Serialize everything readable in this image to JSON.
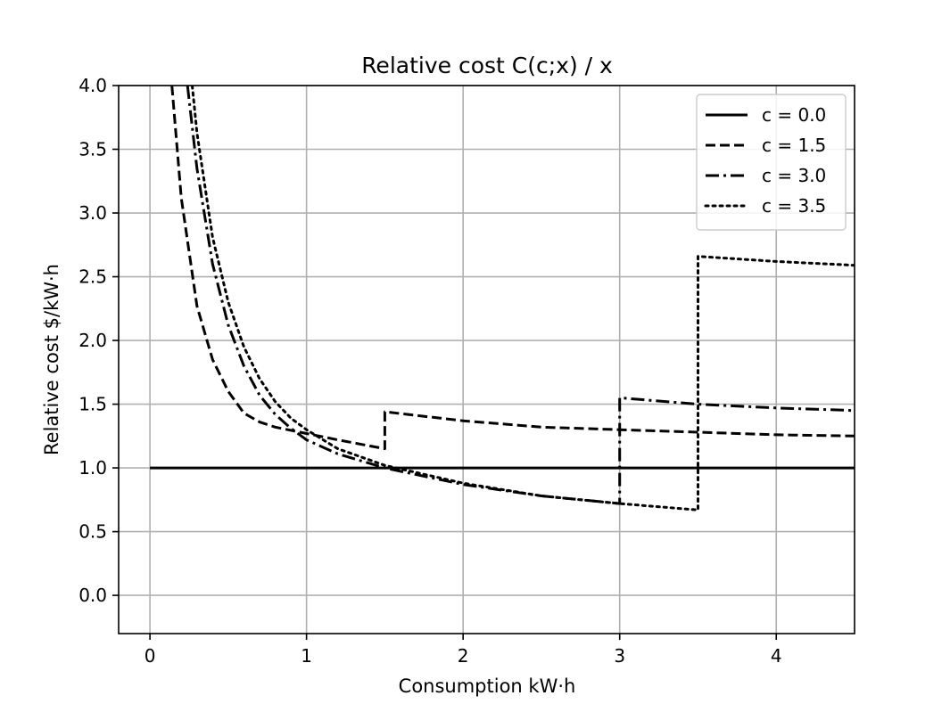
{
  "chart_data": {
    "type": "line",
    "title": "Relative cost C(c;x) / x",
    "xlabel": "Consumption kW·h",
    "ylabel": "Relative cost $/kW·h",
    "xlim": [
      -0.2,
      4.5
    ],
    "ylim": [
      -0.3,
      4.0
    ],
    "xticks": [
      0,
      1,
      2,
      3,
      4
    ],
    "xtick_labels": [
      "0",
      "1",
      "2",
      "3",
      "4"
    ],
    "yticks": [
      0.0,
      0.5,
      1.0,
      1.5,
      2.0,
      2.5,
      3.0,
      3.5,
      4.0
    ],
    "ytick_labels": [
      "0.0",
      "0.5",
      "1.0",
      "1.5",
      "2.0",
      "2.5",
      "3.0",
      "3.5",
      "4.0"
    ],
    "grid": true,
    "legend_position": "top-right",
    "series": [
      {
        "name": "c = 0.0",
        "style": "solid",
        "points": [
          [
            0.0,
            1.0
          ],
          [
            4.5,
            1.0
          ]
        ]
      },
      {
        "name": "c = 1.5",
        "style": "dashed",
        "points": [
          [
            0.14,
            4.0
          ],
          [
            0.2,
            3.12
          ],
          [
            0.3,
            2.27
          ],
          [
            0.4,
            1.85
          ],
          [
            0.5,
            1.6
          ],
          [
            0.6,
            1.43
          ],
          [
            0.7,
            1.36
          ],
          [
            0.8,
            1.32
          ],
          [
            1.0,
            1.27
          ],
          [
            1.2,
            1.22
          ],
          [
            1.5,
            1.15
          ],
          [
            1.5,
            1.44
          ],
          [
            2.0,
            1.37
          ],
          [
            2.5,
            1.32
          ],
          [
            3.0,
            1.3
          ],
          [
            3.5,
            1.28
          ],
          [
            4.0,
            1.26
          ],
          [
            4.5,
            1.25
          ]
        ]
      },
      {
        "name": "c = 3.0",
        "style": "dashdot",
        "points": [
          [
            0.24,
            4.0
          ],
          [
            0.3,
            3.35
          ],
          [
            0.4,
            2.6
          ],
          [
            0.5,
            2.12
          ],
          [
            0.6,
            1.8
          ],
          [
            0.7,
            1.57
          ],
          [
            0.8,
            1.42
          ],
          [
            0.9,
            1.31
          ],
          [
            1.0,
            1.22
          ],
          [
            1.2,
            1.11
          ],
          [
            1.5,
            1.0
          ],
          [
            2.0,
            0.87
          ],
          [
            2.5,
            0.78
          ],
          [
            3.0,
            0.72
          ],
          [
            3.0,
            1.55
          ],
          [
            3.5,
            1.5
          ],
          [
            4.0,
            1.47
          ],
          [
            4.5,
            1.45
          ]
        ]
      },
      {
        "name": "c = 3.5",
        "style": "dotted",
        "points": [
          [
            0.27,
            4.0
          ],
          [
            0.3,
            3.63
          ],
          [
            0.4,
            2.81
          ],
          [
            0.5,
            2.3
          ],
          [
            0.6,
            1.95
          ],
          [
            0.7,
            1.7
          ],
          [
            0.8,
            1.52
          ],
          [
            0.9,
            1.39
          ],
          [
            1.0,
            1.3
          ],
          [
            1.2,
            1.15
          ],
          [
            1.5,
            1.02
          ],
          [
            2.0,
            0.88
          ],
          [
            2.5,
            0.78
          ],
          [
            3.0,
            0.72
          ],
          [
            3.5,
            0.67
          ],
          [
            3.5,
            2.66
          ],
          [
            4.0,
            2.62
          ],
          [
            4.5,
            2.59
          ]
        ]
      }
    ]
  }
}
